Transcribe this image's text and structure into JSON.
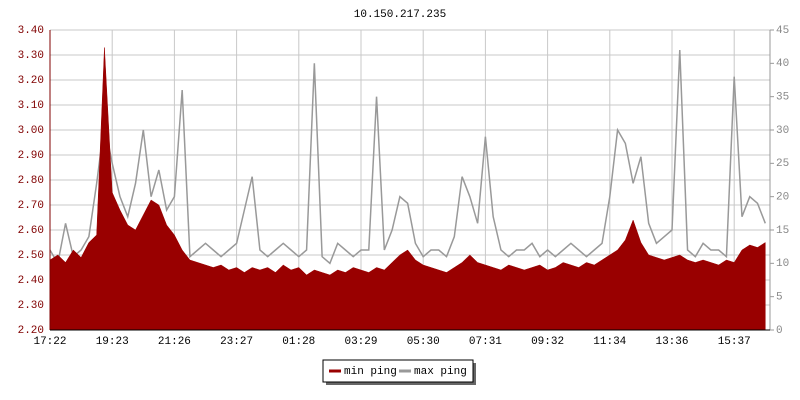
{
  "chart_data": {
    "type": "area-line",
    "title": "10.150.217.235",
    "categories": [
      "17:22",
      null,
      null,
      null,
      null,
      null,
      null,
      null,
      "19:23",
      null,
      null,
      null,
      null,
      null,
      null,
      null,
      "21:26",
      null,
      null,
      null,
      null,
      null,
      null,
      null,
      "23:27",
      null,
      null,
      null,
      null,
      null,
      null,
      null,
      "01:28",
      null,
      null,
      null,
      null,
      null,
      null,
      null,
      "03:29",
      null,
      null,
      null,
      null,
      null,
      null,
      null,
      "05:30",
      null,
      null,
      null,
      null,
      null,
      null,
      null,
      "07:31",
      null,
      null,
      null,
      null,
      null,
      null,
      null,
      "09:32",
      null,
      null,
      null,
      null,
      null,
      null,
      null,
      "11:34",
      null,
      null,
      null,
      null,
      null,
      null,
      null,
      "13:36",
      null,
      null,
      null,
      null,
      null,
      null,
      null,
      "15:37",
      null,
      null,
      null,
      null
    ],
    "series": [
      {
        "name": "min ping",
        "color": "#990000",
        "axis": "y",
        "values": [
          2.48,
          2.5,
          2.47,
          2.52,
          2.49,
          2.55,
          2.58,
          3.33,
          2.75,
          2.68,
          2.62,
          2.6,
          2.66,
          2.72,
          2.7,
          2.62,
          2.58,
          2.52,
          2.48,
          2.47,
          2.46,
          2.45,
          2.46,
          2.44,
          2.45,
          2.43,
          2.45,
          2.44,
          2.45,
          2.43,
          2.46,
          2.44,
          2.45,
          2.42,
          2.44,
          2.43,
          2.42,
          2.44,
          2.43,
          2.45,
          2.44,
          2.43,
          2.45,
          2.44,
          2.47,
          2.5,
          2.52,
          2.48,
          2.46,
          2.45,
          2.44,
          2.43,
          2.45,
          2.47,
          2.5,
          2.47,
          2.46,
          2.45,
          2.44,
          2.46,
          2.45,
          2.44,
          2.45,
          2.46,
          2.44,
          2.45,
          2.47,
          2.46,
          2.45,
          2.47,
          2.46,
          2.48,
          2.5,
          2.52,
          2.56,
          2.64,
          2.55,
          2.5,
          2.49,
          2.48,
          2.49,
          2.5,
          2.48,
          2.47,
          2.48,
          2.47,
          2.46,
          2.48,
          2.47,
          2.52,
          2.54,
          2.53,
          2.55
        ]
      },
      {
        "name": "max ping",
        "color": "#999999",
        "axis": "y2",
        "values": [
          12,
          10,
          16,
          11,
          12,
          14,
          22,
          31,
          25,
          20,
          17,
          22,
          30,
          20,
          24,
          18,
          20,
          36,
          11,
          12,
          13,
          12,
          11,
          12,
          13,
          18,
          23,
          12,
          11,
          12,
          13,
          12,
          11,
          12,
          40,
          11,
          10,
          13,
          12,
          11,
          12,
          12,
          35,
          12,
          15,
          20,
          19,
          13,
          11,
          12,
          12,
          11,
          14,
          23,
          20,
          16,
          29,
          17,
          12,
          11,
          12,
          12,
          13,
          11,
          12,
          11,
          12,
          13,
          12,
          11,
          12,
          13,
          20,
          30,
          28,
          22,
          26,
          16,
          13,
          14,
          15,
          42,
          12,
          11,
          13,
          12,
          12,
          11,
          38,
          17,
          20,
          19,
          16
        ]
      }
    ],
    "ylim": [
      2.2,
      3.4
    ],
    "yticks": [
      {
        "value": 2.2,
        "label": "2.20"
      },
      {
        "value": 2.3,
        "label": "2.30"
      },
      {
        "value": 2.4,
        "label": "2.40"
      },
      {
        "value": 2.5,
        "label": "2.50"
      },
      {
        "value": 2.6,
        "label": "2.60"
      },
      {
        "value": 2.7,
        "label": "2.70"
      },
      {
        "value": 2.8,
        "label": "2.80"
      },
      {
        "value": 2.9,
        "label": "2.90"
      },
      {
        "value": 3.0,
        "label": "3.00"
      },
      {
        "value": 3.1,
        "label": "3.10"
      },
      {
        "value": 3.2,
        "label": "3.20"
      },
      {
        "value": 3.3,
        "label": "3.30"
      },
      {
        "value": 3.4,
        "label": "3.40"
      }
    ],
    "y2lim": [
      0,
      45
    ],
    "y2ticks": [
      0,
      5,
      10,
      15,
      20,
      25,
      30,
      35,
      40,
      45
    ],
    "grid": true,
    "legend": "bottom"
  }
}
